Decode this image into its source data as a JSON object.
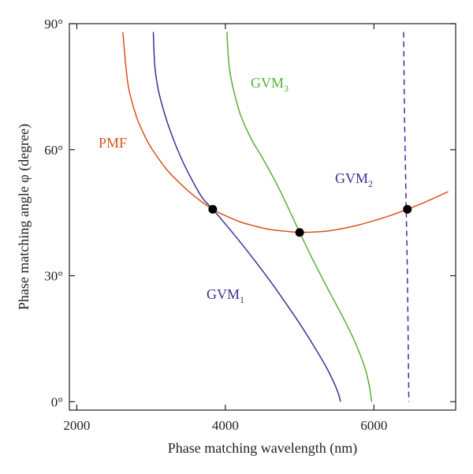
{
  "chart_data": {
    "type": "line",
    "title": "",
    "xlabel": "Phase matching wavelength (nm)",
    "ylabel": "Phase matching angle φ (degree)",
    "xlim": [
      1900,
      7100
    ],
    "ylim": [
      -2,
      90
    ],
    "xticks": [
      2000,
      4000,
      6000
    ],
    "xtick_labels": [
      "2000",
      "4000",
      "6000"
    ],
    "yticks": [
      0,
      30,
      60,
      90
    ],
    "ytick_labels": [
      "0°",
      "30°",
      "60°",
      "90°"
    ],
    "grid": false,
    "legend": "none",
    "series": [
      {
        "name": "PMF",
        "label_main": "PMF",
        "label_sub": "",
        "color": "#d9531e",
        "dash": false,
        "x": [
          2620,
          2660,
          2700,
          2800,
          2900,
          3000,
          3200,
          3400,
          3600,
          3830,
          4000,
          4200,
          4400,
          4600,
          4800,
          5000,
          5200,
          5400,
          5600,
          5800,
          6000,
          6200,
          6450,
          6700,
          7000
        ],
        "y": [
          88,
          80,
          74.5,
          68,
          63.8,
          60.5,
          55.5,
          51.8,
          48.7,
          45.8,
          44.3,
          42.8,
          41.8,
          41.0,
          40.6,
          40.3,
          40.4,
          40.7,
          41.3,
          42.1,
          43.1,
          44.2,
          45.8,
          47.6,
          50.0
        ]
      },
      {
        "name": "GVM1",
        "label_main": "GVM",
        "label_sub": "1",
        "color": "#3c2f96",
        "dash": false,
        "x": [
          3030,
          3050,
          3100,
          3200,
          3300,
          3400,
          3500,
          3600,
          3700,
          3830,
          4000,
          4200,
          4400,
          4600,
          4800,
          5000,
          5200,
          5350,
          5450,
          5520,
          5550
        ],
        "y": [
          88,
          80,
          74,
          67.5,
          62.5,
          58.2,
          54.5,
          51.2,
          48.3,
          45.8,
          42.3,
          38.0,
          33.5,
          28.8,
          23.8,
          18.6,
          13.0,
          8.5,
          5.0,
          2.0,
          0
        ]
      },
      {
        "name": "GVM3",
        "label_main": "GVM",
        "label_sub": "3",
        "color": "#57b03a",
        "dash": false,
        "x": [
          4020,
          4050,
          4100,
          4200,
          4350,
          4500,
          4700,
          4850,
          5000,
          5200,
          5400,
          5600,
          5750,
          5880,
          5940,
          5970
        ],
        "y": [
          88,
          80,
          75,
          68.5,
          62.5,
          58.0,
          51.5,
          46.0,
          40.3,
          33.0,
          26.2,
          19.5,
          14.0,
          8.0,
          3.5,
          0
        ]
      },
      {
        "name": "GVM2",
        "label_main": "GVM",
        "label_sub": "2",
        "color": "#3c2f96",
        "dash": true,
        "x": [
          6400,
          6410,
          6420,
          6430,
          6450,
          6470
        ],
        "y": [
          88,
          70,
          60,
          50,
          30,
          0
        ]
      }
    ],
    "points": [
      {
        "x": 3830,
        "y": 45.8
      },
      {
        "x": 5000,
        "y": 40.3
      },
      {
        "x": 6450,
        "y": 45.8
      }
    ]
  }
}
